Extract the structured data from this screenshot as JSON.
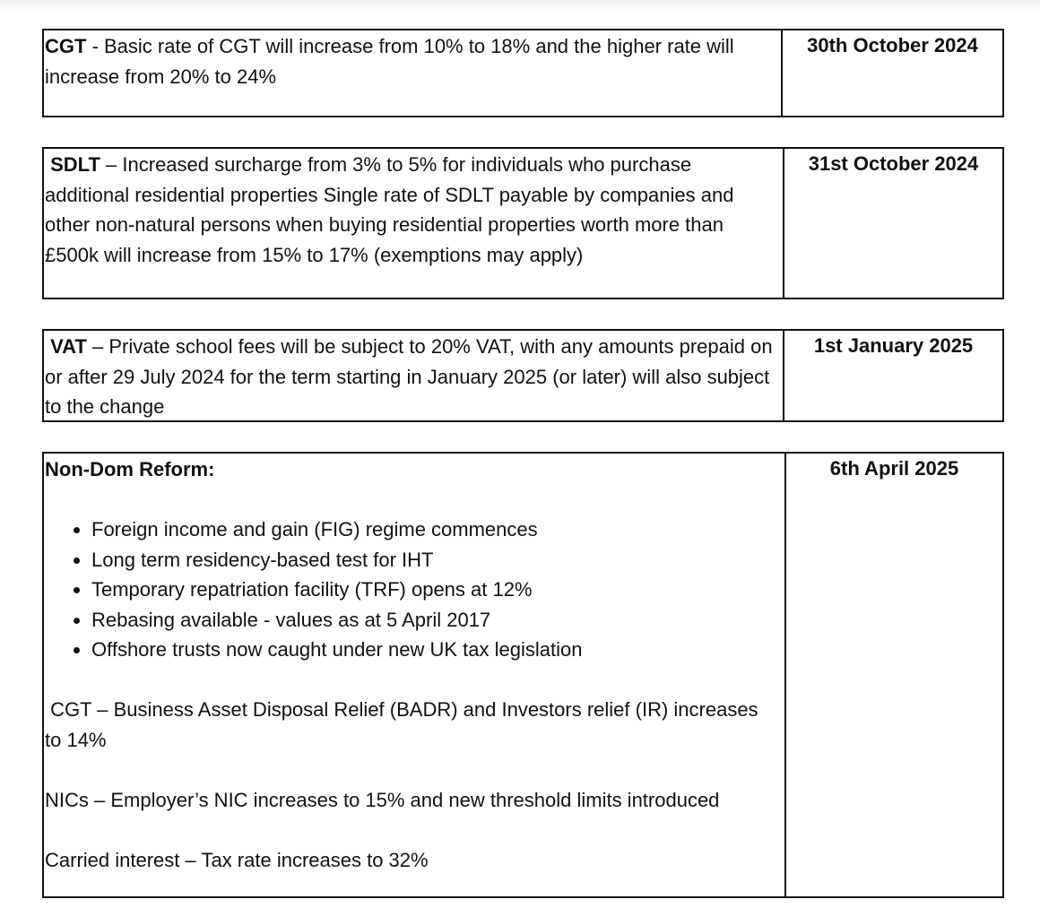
{
  "rows": [
    {
      "label": "CGT",
      "text": " - Basic rate of CGT will increase from 10% to 18% and the higher rate will increase from 20% to 24%",
      "date": "30th October 2024"
    },
    {
      "label": "SDLT",
      "text": " – Increased surcharge from 3% to 5% for individuals who purchase additional residential properties Single rate of SDLT payable by companies and other non-natural persons when buying residential properties worth more than £500k will increase from 15% to 17% (exemptions may apply)",
      "date": "31st October 2024"
    },
    {
      "label": "VAT",
      "text": " – Private school fees will be subject to 20% VAT, with any amounts prepaid on or after 29 July 2024 for the term starting in January 2025 (or later) will also subject to the change",
      "date": "1st January 2025"
    }
  ],
  "nondom": {
    "heading": "Non-Dom Reform:",
    "date": "6th April 2025",
    "bullets": [
      "Foreign income and gain (FIG) regime commences",
      "Long term residency-based test for IHT",
      "Temporary repatriation facility (TRF) opens at 12%",
      "Rebasing available - values as at 5 April 2017",
      "Offshore trusts now caught under new UK tax legislation"
    ],
    "paragraphs": [
      " CGT – Business Asset Disposal Relief (BADR) and Investors relief (IR) increases to 14%",
      "NICs – Employer’s NIC increases to 15% and new threshold limits introduced",
      "Carried interest – Tax rate increases to 32%"
    ]
  }
}
